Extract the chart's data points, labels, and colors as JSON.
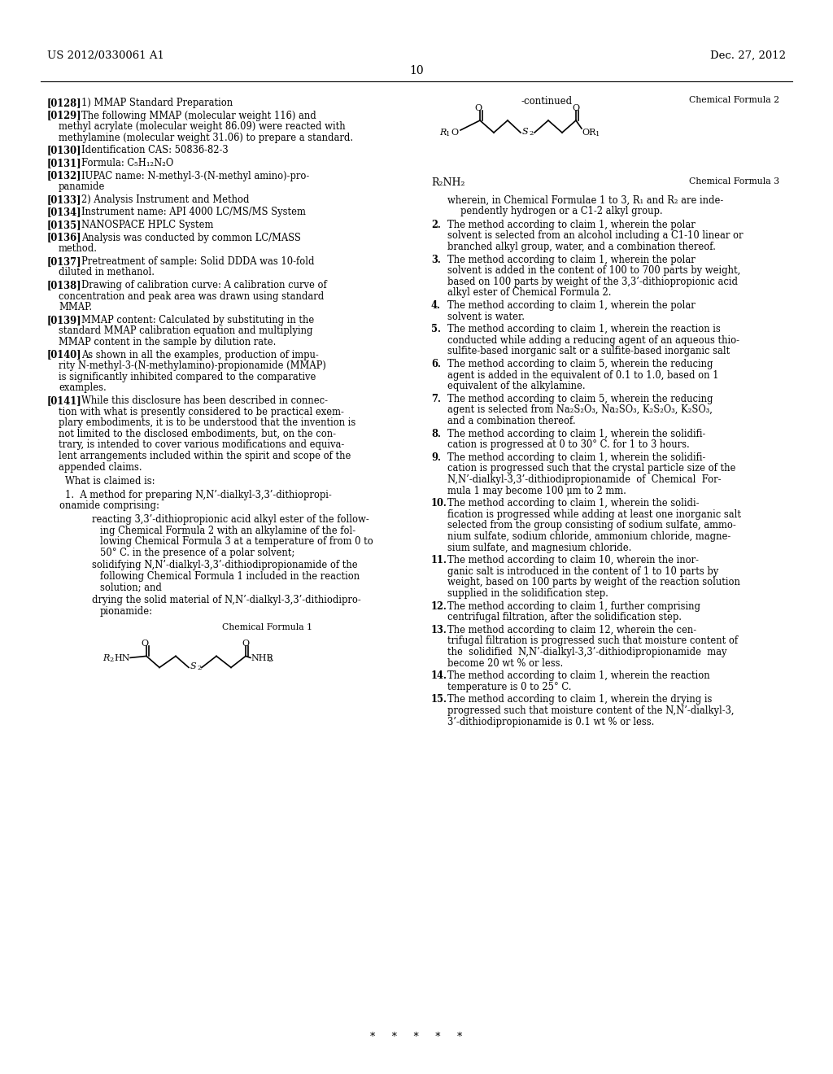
{
  "bg_color": "#ffffff",
  "header_left": "US 2012/0330061 A1",
  "header_right": "Dec. 27, 2012",
  "page_number": "10",
  "footer": "*   *   *   *   *"
}
